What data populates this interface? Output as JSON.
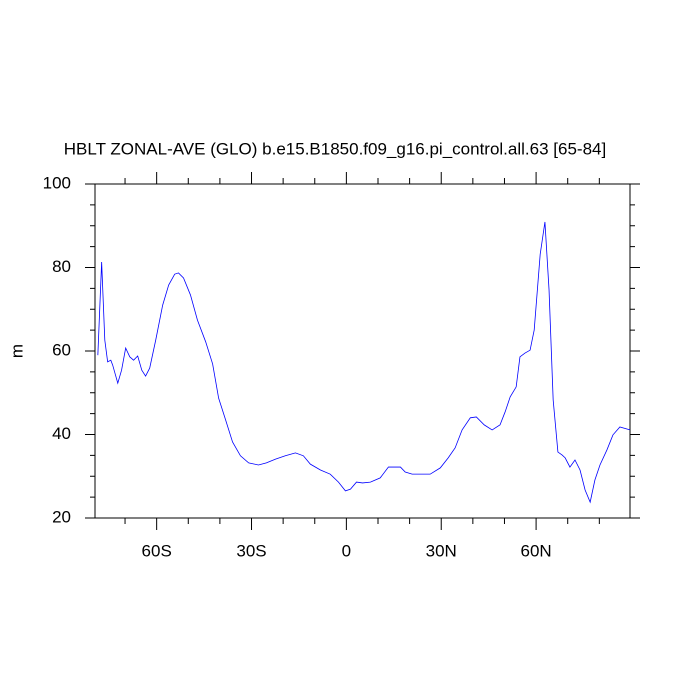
{
  "chart_data": {
    "type": "line",
    "title": "HBLT ZONAL-AVE (GLO) b.e15.B1850.f09_g16.pi_control.all.63 [65-84]",
    "ylabel": "m",
    "xlim": [
      -79.5,
      89.7
    ],
    "ylim": [
      20,
      100
    ],
    "xticks": [
      {
        "value": -60,
        "label": "60S"
      },
      {
        "value": -30,
        "label": "30S"
      },
      0,
      {
        "value": 30,
        "label": "30N"
      },
      {
        "value": 60,
        "label": "60N"
      }
    ],
    "xminorticks": [
      -70,
      -50,
      -40,
      -20,
      -10,
      10,
      20,
      40,
      50,
      70,
      80
    ],
    "yticks": [
      20,
      40,
      60,
      80,
      100
    ],
    "yminorticks": [
      25,
      30,
      35,
      45,
      50,
      55,
      65,
      70,
      75,
      85,
      90,
      95
    ],
    "series": [
      {
        "color": "#0000ff",
        "x": [
          -78.6,
          -77.4,
          -76.4,
          -75.5,
          -74.5,
          -73.9,
          -72.3,
          -71.1,
          -69.8,
          -68.5,
          -67.3,
          -66.0,
          -64.7,
          -63.5,
          -62.2,
          -60.3,
          -58.1,
          -56.2,
          -54.3,
          -53.1,
          -51.5,
          -49.3,
          -47.1,
          -44.5,
          -42.3,
          -40.4,
          -38.2,
          -36.0,
          -33.5,
          -30.9,
          -27.8,
          -25.3,
          -22.4,
          -19.3,
          -16.1,
          -13.6,
          -11.4,
          -8.2,
          -5.1,
          -2.5,
          -0.3,
          1.3,
          3.2,
          5.1,
          7.6,
          10.7,
          13.3,
          15.5,
          17.1,
          18.6,
          20.8,
          24.0,
          26.5,
          29.7,
          32.2,
          34.4,
          36.6,
          39.2,
          41.1,
          43.6,
          46.1,
          48.6,
          50.2,
          51.8,
          53.7,
          54.9,
          56.5,
          58.1,
          59.4,
          61.3,
          62.8,
          64.1,
          65.4,
          66.9,
          68.2,
          69.2,
          70.7,
          72.3,
          73.9,
          75.5,
          77.1,
          78.6,
          80.2,
          82.4,
          84.3,
          86.5,
          89.7
        ],
        "values": [
          59,
          81.3,
          62.6,
          57.4,
          57.8,
          56.6,
          52.3,
          55.4,
          60.7,
          58.6,
          57.8,
          58.8,
          55.4,
          54,
          55.9,
          62.6,
          71,
          75.8,
          78.4,
          78.7,
          77.5,
          73.4,
          67.4,
          62.2,
          56.9,
          48.7,
          43.5,
          38.2,
          34.9,
          33.2,
          32.7,
          33.2,
          34.1,
          34.9,
          35.6,
          34.9,
          32.9,
          31.5,
          30.5,
          28.6,
          26.5,
          26.9,
          28.6,
          28.4,
          28.6,
          29.6,
          32.2,
          32.2,
          32.2,
          31,
          30.5,
          30.5,
          30.5,
          32,
          34.4,
          36.8,
          41.1,
          44,
          44.2,
          42.3,
          41.1,
          42.3,
          45.4,
          49,
          51.4,
          58.6,
          59.5,
          60.2,
          65,
          83.2,
          90.9,
          74.6,
          48.3,
          35.8,
          35.1,
          34.4,
          32.2,
          33.9,
          31.5,
          26.7,
          23.8,
          29.1,
          32.7,
          36.3,
          39.9,
          41.8,
          41.1
        ]
      }
    ]
  }
}
